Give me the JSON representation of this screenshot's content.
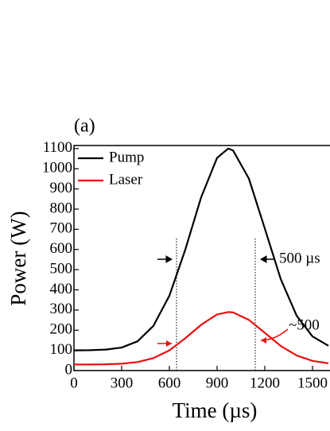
{
  "chart_data": {
    "type": "line",
    "title": "(a)",
    "xlabel": "Time (µs)",
    "ylabel": "Power (W)",
    "x": [
      0,
      100,
      200,
      300,
      400,
      500,
      600,
      700,
      800,
      900,
      970,
      1000,
      1100,
      1200,
      1300,
      1400,
      1500,
      1600
    ],
    "series": [
      {
        "name": "Pump",
        "color": "#000000",
        "values": [
          100,
          101,
          104,
          114,
          145,
          222,
          371,
          599,
          859,
          1054,
          1100,
          1091,
          951,
          704,
          454,
          272,
          169,
          123
        ]
      },
      {
        "name": "Laser",
        "color": "#e8110f",
        "values": [
          30,
          30,
          31,
          34,
          42,
          62,
          100,
          160,
          227,
          278,
          290,
          288,
          251,
          187,
          122,
          75,
          48,
          36
        ]
      }
    ],
    "xlim": [
      0,
      1610
    ],
    "ylim": [
      0,
      1115
    ],
    "xticks": [
      0,
      300,
      600,
      900,
      1200,
      1500
    ],
    "yticks": [
      0,
      100,
      200,
      300,
      400,
      500,
      600,
      700,
      800,
      900,
      1000,
      1100
    ],
    "legend": "upper-left",
    "annotations": [
      {
        "text": "500 µs",
        "color": "#000000"
      },
      {
        "text": "~500",
        "color": "#e8110f"
      }
    ]
  }
}
